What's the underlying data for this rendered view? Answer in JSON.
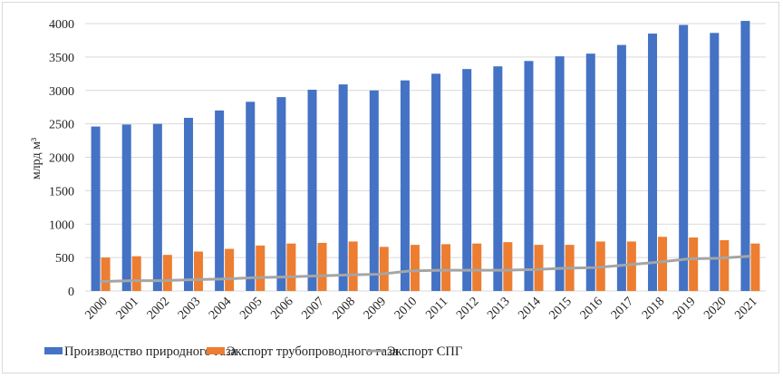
{
  "chart_data": {
    "type": "bar",
    "title": "",
    "xlabel": "",
    "ylabel": "млрд м³",
    "ylim": [
      0,
      4000
    ],
    "yticks": [
      0,
      500,
      1000,
      1500,
      2000,
      2500,
      3000,
      3500,
      4000
    ],
    "grid": true,
    "legend": "bottom",
    "categories": [
      "2000",
      "2001",
      "2002",
      "2003",
      "2004",
      "2005",
      "2006",
      "2007",
      "2008",
      "2009",
      "2010",
      "2011",
      "2012",
      "2013",
      "2014",
      "2015",
      "2016",
      "2017",
      "2018",
      "2019",
      "2020",
      "2021"
    ],
    "series": [
      {
        "name": "Производство природного газа",
        "kind": "bar",
        "color": "#4472C4",
        "values": [
          2460,
          2490,
          2500,
          2590,
          2700,
          2830,
          2900,
          3010,
          3090,
          3000,
          3150,
          3250,
          3320,
          3360,
          3440,
          3510,
          3550,
          3680,
          3850,
          3980,
          3860,
          4040
        ]
      },
      {
        "name": "Экспорт трубопроводного газа",
        "kind": "bar",
        "color": "#ED7D31",
        "values": [
          500,
          520,
          540,
          590,
          630,
          680,
          710,
          720,
          740,
          660,
          690,
          700,
          710,
          730,
          690,
          690,
          740,
          740,
          810,
          800,
          760,
          710
        ]
      },
      {
        "name": "Экспорт СПГ",
        "kind": "line",
        "color": "#A5A5A5",
        "values": [
          140,
          155,
          155,
          170,
          180,
          200,
          210,
          225,
          240,
          250,
          300,
          310,
          310,
          310,
          320,
          340,
          350,
          390,
          430,
          480,
          490,
          520
        ]
      }
    ]
  }
}
